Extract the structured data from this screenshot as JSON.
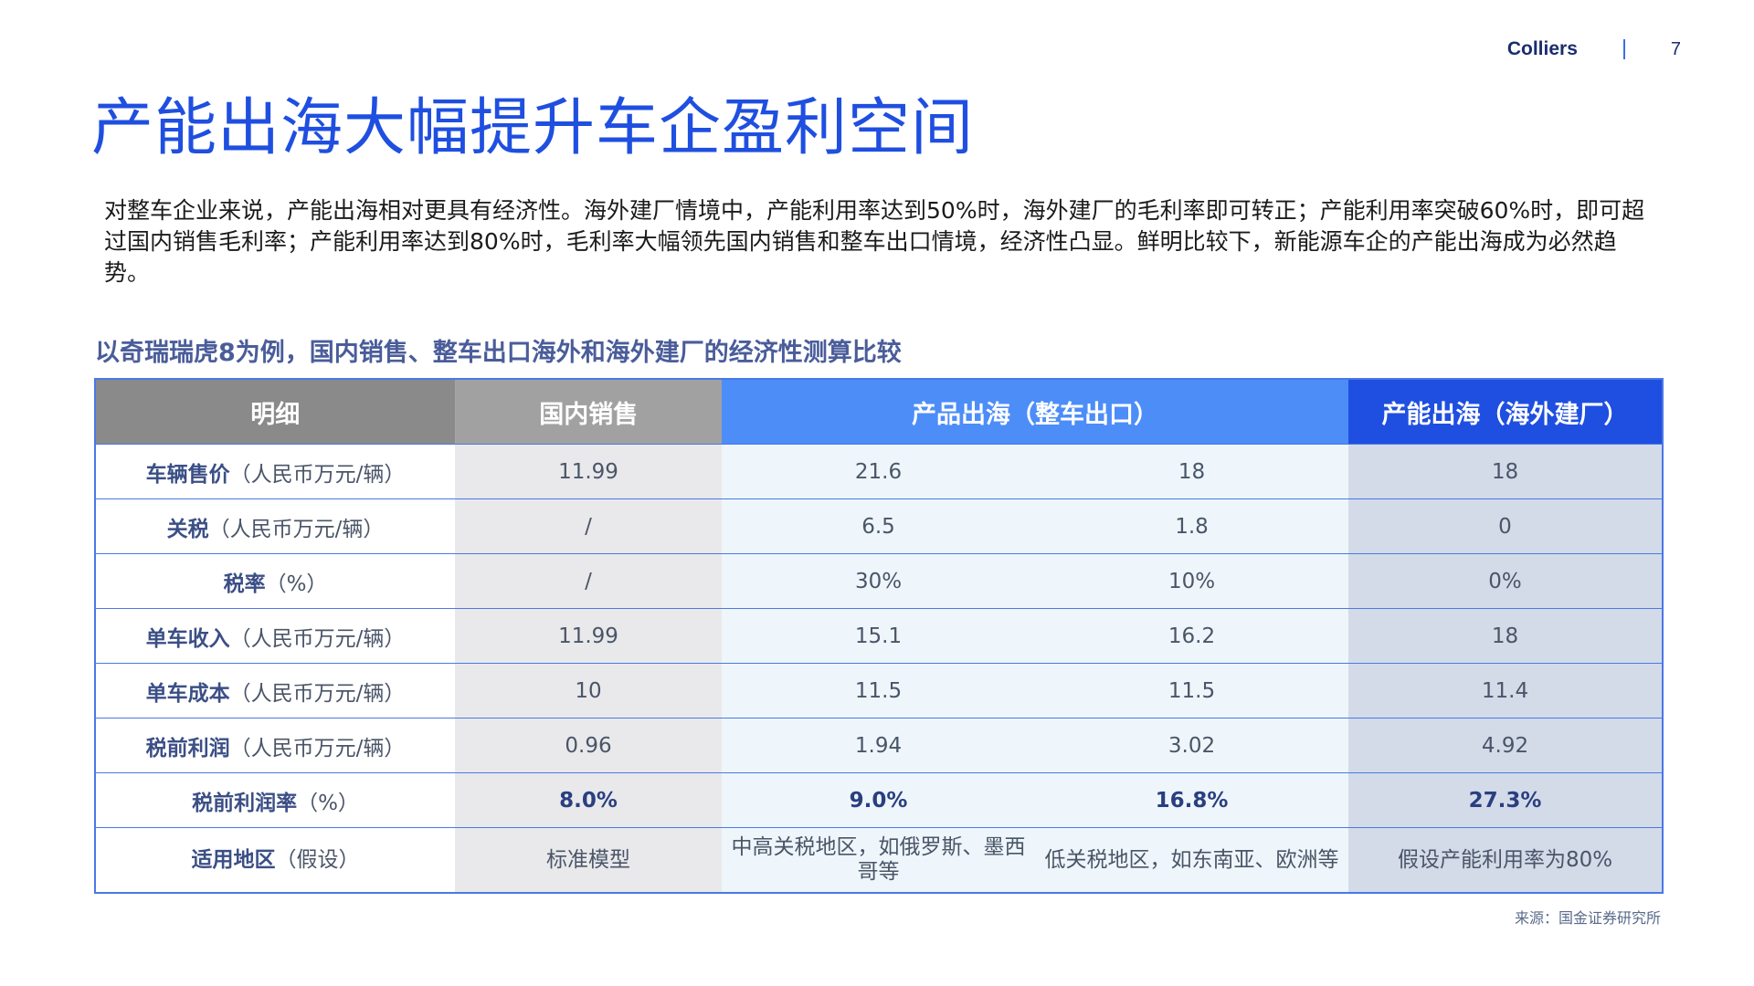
{
  "header": {
    "brand": "Colliers",
    "page_number": "7"
  },
  "title": "产能出海大幅提升车企盈利空间",
  "intro": "对整车企业来说，产能出海相对更具有经济性。海外建厂情境中，产能利用率达到50%时，海外建厂的毛利率即可转正；产能利用率突破60%时，即可超过国内销售毛利率；产能利用率达到80%时，毛利率大幅领先国内销售和整车出口情境，经济性凸显。鲜明比较下，新能源车企的产能出海成为必然趋势。",
  "table_title": "以奇瑞瑞虎8为例，国内销售、整车出口海外和海外建厂的经济性测算比较",
  "table": {
    "headers": {
      "detail": "明细",
      "domestic": "国内销售",
      "export": "产品出海（整车出口）",
      "plant": "产能出海（海外建厂）"
    },
    "rows": [
      {
        "label_bold": "车辆售价",
        "label_rest": "（人民币万元/辆）",
        "domestic": "11.99",
        "export_a": "21.6",
        "export_b": "18",
        "plant": "18"
      },
      {
        "label_bold": "关税",
        "label_rest": "（人民币万元/辆）",
        "domestic": "/",
        "export_a": "6.5",
        "export_b": "1.8",
        "plant": "0"
      },
      {
        "label_bold": "税率",
        "label_rest": "（%）",
        "domestic": "/",
        "export_a": "30%",
        "export_b": "10%",
        "plant": "0%"
      },
      {
        "label_bold": "单车收入",
        "label_rest": "（人民币万元/辆）",
        "domestic": "11.99",
        "export_a": "15.1",
        "export_b": "16.2",
        "plant": "18"
      },
      {
        "label_bold": "单车成本",
        "label_rest": "（人民币万元/辆）",
        "domestic": "10",
        "export_a": "11.5",
        "export_b": "11.5",
        "plant": "11.4"
      },
      {
        "label_bold": "税前利润",
        "label_rest": "（人民币万元/辆）",
        "domestic": "0.96",
        "export_a": "1.94",
        "export_b": "3.02",
        "plant": "4.92"
      },
      {
        "label_bold": "税前利润率",
        "label_rest": "（%）",
        "domestic": "8.0%",
        "export_a": "9.0%",
        "export_b": "16.8%",
        "plant": "27.3%"
      },
      {
        "label_bold": "适用地区",
        "label_rest": "（假设）",
        "domestic": "标准模型",
        "export_a": "中高关税地区，如俄罗斯、墨西哥等",
        "export_b": "低关税地区，如东南亚、欧洲等",
        "plant": "假设产能利用率为80%"
      }
    ]
  },
  "source": "来源：国金证券研究所"
}
